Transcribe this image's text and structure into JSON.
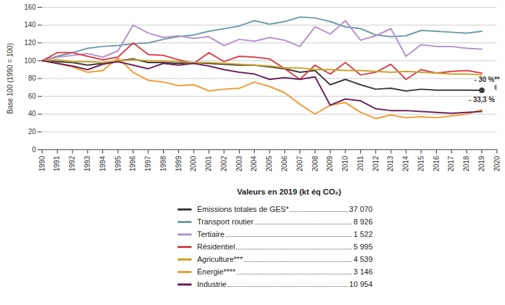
{
  "chart_data": {
    "type": "line",
    "y_label": "Base 100 (1990 = 100)",
    "x": [
      1990,
      1991,
      1992,
      1993,
      1994,
      1995,
      1996,
      1997,
      1998,
      1999,
      2000,
      2001,
      2002,
      2003,
      2004,
      2005,
      2006,
      2007,
      2008,
      2009,
      2010,
      2011,
      2012,
      2013,
      2014,
      2015,
      2016,
      2017,
      2018,
      2019
    ],
    "xlim": [
      1990,
      2020
    ],
    "xticks": [
      1990,
      1991,
      1992,
      1993,
      1994,
      1995,
      1996,
      1997,
      1998,
      1999,
      2000,
      2001,
      2002,
      2003,
      2004,
      2005,
      2006,
      2007,
      2008,
      2009,
      2010,
      2011,
      2012,
      2013,
      2014,
      2015,
      2016,
      2017,
      2018,
      2019,
      2020
    ],
    "ylim": [
      0,
      160
    ],
    "yticks": [
      0,
      20,
      40,
      60,
      80,
      100,
      120,
      140,
      160
    ],
    "grid": true,
    "legend_title": "Valeurs en 2019 (kt éq CO₂)",
    "series": [
      {
        "name": "Émissions totales de GES*",
        "color": "#3a3a3a",
        "value_2019": 37070,
        "value_2019_label": "37 070",
        "values": [
          100,
          99,
          98,
          95,
          97,
          100,
          102,
          98,
          98,
          97,
          98,
          97,
          96,
          95,
          95,
          93,
          91,
          87,
          89,
          73,
          79,
          73,
          68,
          69,
          66,
          68,
          67,
          67,
          67,
          66.7
        ]
      },
      {
        "name": "Transport routier",
        "color": "#6f9ba8",
        "value_2019": 8926,
        "value_2019_label": "8 926",
        "values": [
          100,
          105,
          109,
          114,
          116,
          117,
          119,
          120,
          124,
          127,
          129,
          133,
          136,
          139,
          145,
          141,
          144,
          149,
          148,
          144,
          138,
          136,
          129,
          127,
          128,
          134,
          133,
          132,
          131,
          133
        ]
      },
      {
        "name": "Tertiaire",
        "color": "#b592cc",
        "value_2019": 1522,
        "value_2019_label": "1 522",
        "values": [
          100,
          104,
          106,
          108,
          104,
          111,
          140,
          131,
          126,
          128,
          125,
          127,
          117,
          124,
          122,
          126,
          123,
          116,
          138,
          130,
          145,
          123,
          128,
          136,
          105,
          118,
          116,
          116,
          114,
          113
        ]
      },
      {
        "name": "Résidentiel",
        "color": "#d9434f",
        "value_2019": 5995,
        "value_2019_label": "5 995",
        "values": [
          100,
          109,
          109,
          105,
          101,
          104,
          120,
          107,
          106,
          101,
          97,
          109,
          99,
          105,
          104,
          102,
          91,
          79,
          95,
          85,
          98,
          84,
          87,
          96,
          79,
          90,
          86,
          88,
          89,
          86
        ]
      },
      {
        "name": "Agriculture***",
        "color": "#c9a227",
        "value_2019": 4539,
        "value_2019_label": "4 539",
        "values": [
          100,
          101,
          99,
          99,
          98,
          100,
          101,
          100,
          100,
          99,
          98,
          98,
          97,
          96,
          95,
          94,
          92,
          92,
          90,
          90,
          89,
          89,
          88,
          87,
          88,
          87,
          86,
          85,
          85,
          84
        ]
      },
      {
        "name": "Énergie****",
        "color": "#f39a2e",
        "value_2019": 3146,
        "value_2019_label": "3 146",
        "values": [
          100,
          97,
          93,
          87,
          89,
          103,
          87,
          78,
          76,
          72,
          73,
          66,
          68,
          69,
          76,
          71,
          64,
          51,
          40,
          50,
          53,
          42,
          35,
          39,
          36,
          37,
          36,
          38,
          40,
          45
        ]
      },
      {
        "name": "Industrie",
        "color": "#6b1f5c",
        "value_2019": 10954,
        "value_2019_label": "10 954",
        "values": [
          100,
          97,
          94,
          90,
          96,
          99,
          95,
          91,
          97,
          95,
          97,
          94,
          90,
          87,
          85,
          79,
          81,
          79,
          82,
          50,
          57,
          55,
          46,
          44,
          44,
          43,
          42,
          41,
          42,
          43
        ]
      }
    ],
    "annotations": [
      {
        "text": "- 30 %**",
        "x": 2020,
        "y": 70,
        "color": "#8a8a8a"
      },
      {
        "text": "- 33,3 %",
        "x": 2019,
        "y": 66.7,
        "color": "#3a3a3a"
      }
    ]
  }
}
